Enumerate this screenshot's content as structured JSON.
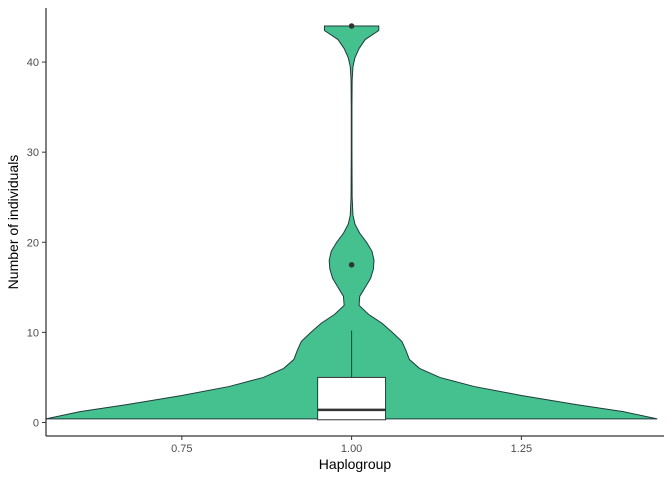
{
  "chart_data": {
    "type": "violin",
    "xlabel": "Haplogroup",
    "ylabel": "Number of individuals",
    "xlim": [
      0.55,
      1.46
    ],
    "ylim": [
      -1.5,
      46
    ],
    "x_ticks": [
      0.75,
      1.0,
      1.25
    ],
    "x_tick_labels": [
      "0.75",
      "1.00",
      "1.25"
    ],
    "y_ticks": [
      0,
      10,
      20,
      30,
      40
    ],
    "y_tick_labels": [
      "0",
      "10",
      "20",
      "30",
      "40"
    ],
    "grid": false,
    "legend": "none",
    "violin": {
      "center": 1.0,
      "fill": "#45C190",
      "stroke": "#1f3b3b",
      "profile": [
        [
          0.4,
          0.45
        ],
        [
          1.2,
          0.4
        ],
        [
          2.0,
          0.33
        ],
        [
          3.0,
          0.25
        ],
        [
          4.0,
          0.18
        ],
        [
          5.0,
          0.13
        ],
        [
          6.0,
          0.1
        ],
        [
          7.0,
          0.085
        ],
        [
          8.0,
          0.08
        ],
        [
          9.0,
          0.074
        ],
        [
          10.0,
          0.06
        ],
        [
          11.0,
          0.045
        ],
        [
          12.0,
          0.025
        ],
        [
          13.0,
          0.011
        ],
        [
          14.0,
          0.012
        ],
        [
          15.0,
          0.02
        ],
        [
          16.0,
          0.028
        ],
        [
          17.0,
          0.032
        ],
        [
          18.0,
          0.033
        ],
        [
          19.0,
          0.03
        ],
        [
          20.0,
          0.022
        ],
        [
          21.0,
          0.012
        ],
        [
          22.0,
          0.005
        ],
        [
          23.0,
          0.002
        ],
        [
          25.0,
          0.0008
        ],
        [
          30.0,
          0.0005
        ],
        [
          35.0,
          0.0005
        ],
        [
          38.0,
          0.0008
        ],
        [
          39.5,
          0.002
        ],
        [
          40.5,
          0.005
        ],
        [
          41.5,
          0.011
        ],
        [
          42.5,
          0.02
        ],
        [
          43.5,
          0.04
        ],
        [
          44.0,
          0.04
        ]
      ]
    },
    "boxplot": {
      "x": 1.0,
      "halfwidth": 0.05,
      "q1": 0.3,
      "median": 1.4,
      "q3": 5.0,
      "whisker_low": 0.3,
      "whisker_high": 10.2,
      "outliers": [
        17.5,
        44.0
      ],
      "fill": "#ffffff",
      "stroke": "#333333"
    }
  }
}
